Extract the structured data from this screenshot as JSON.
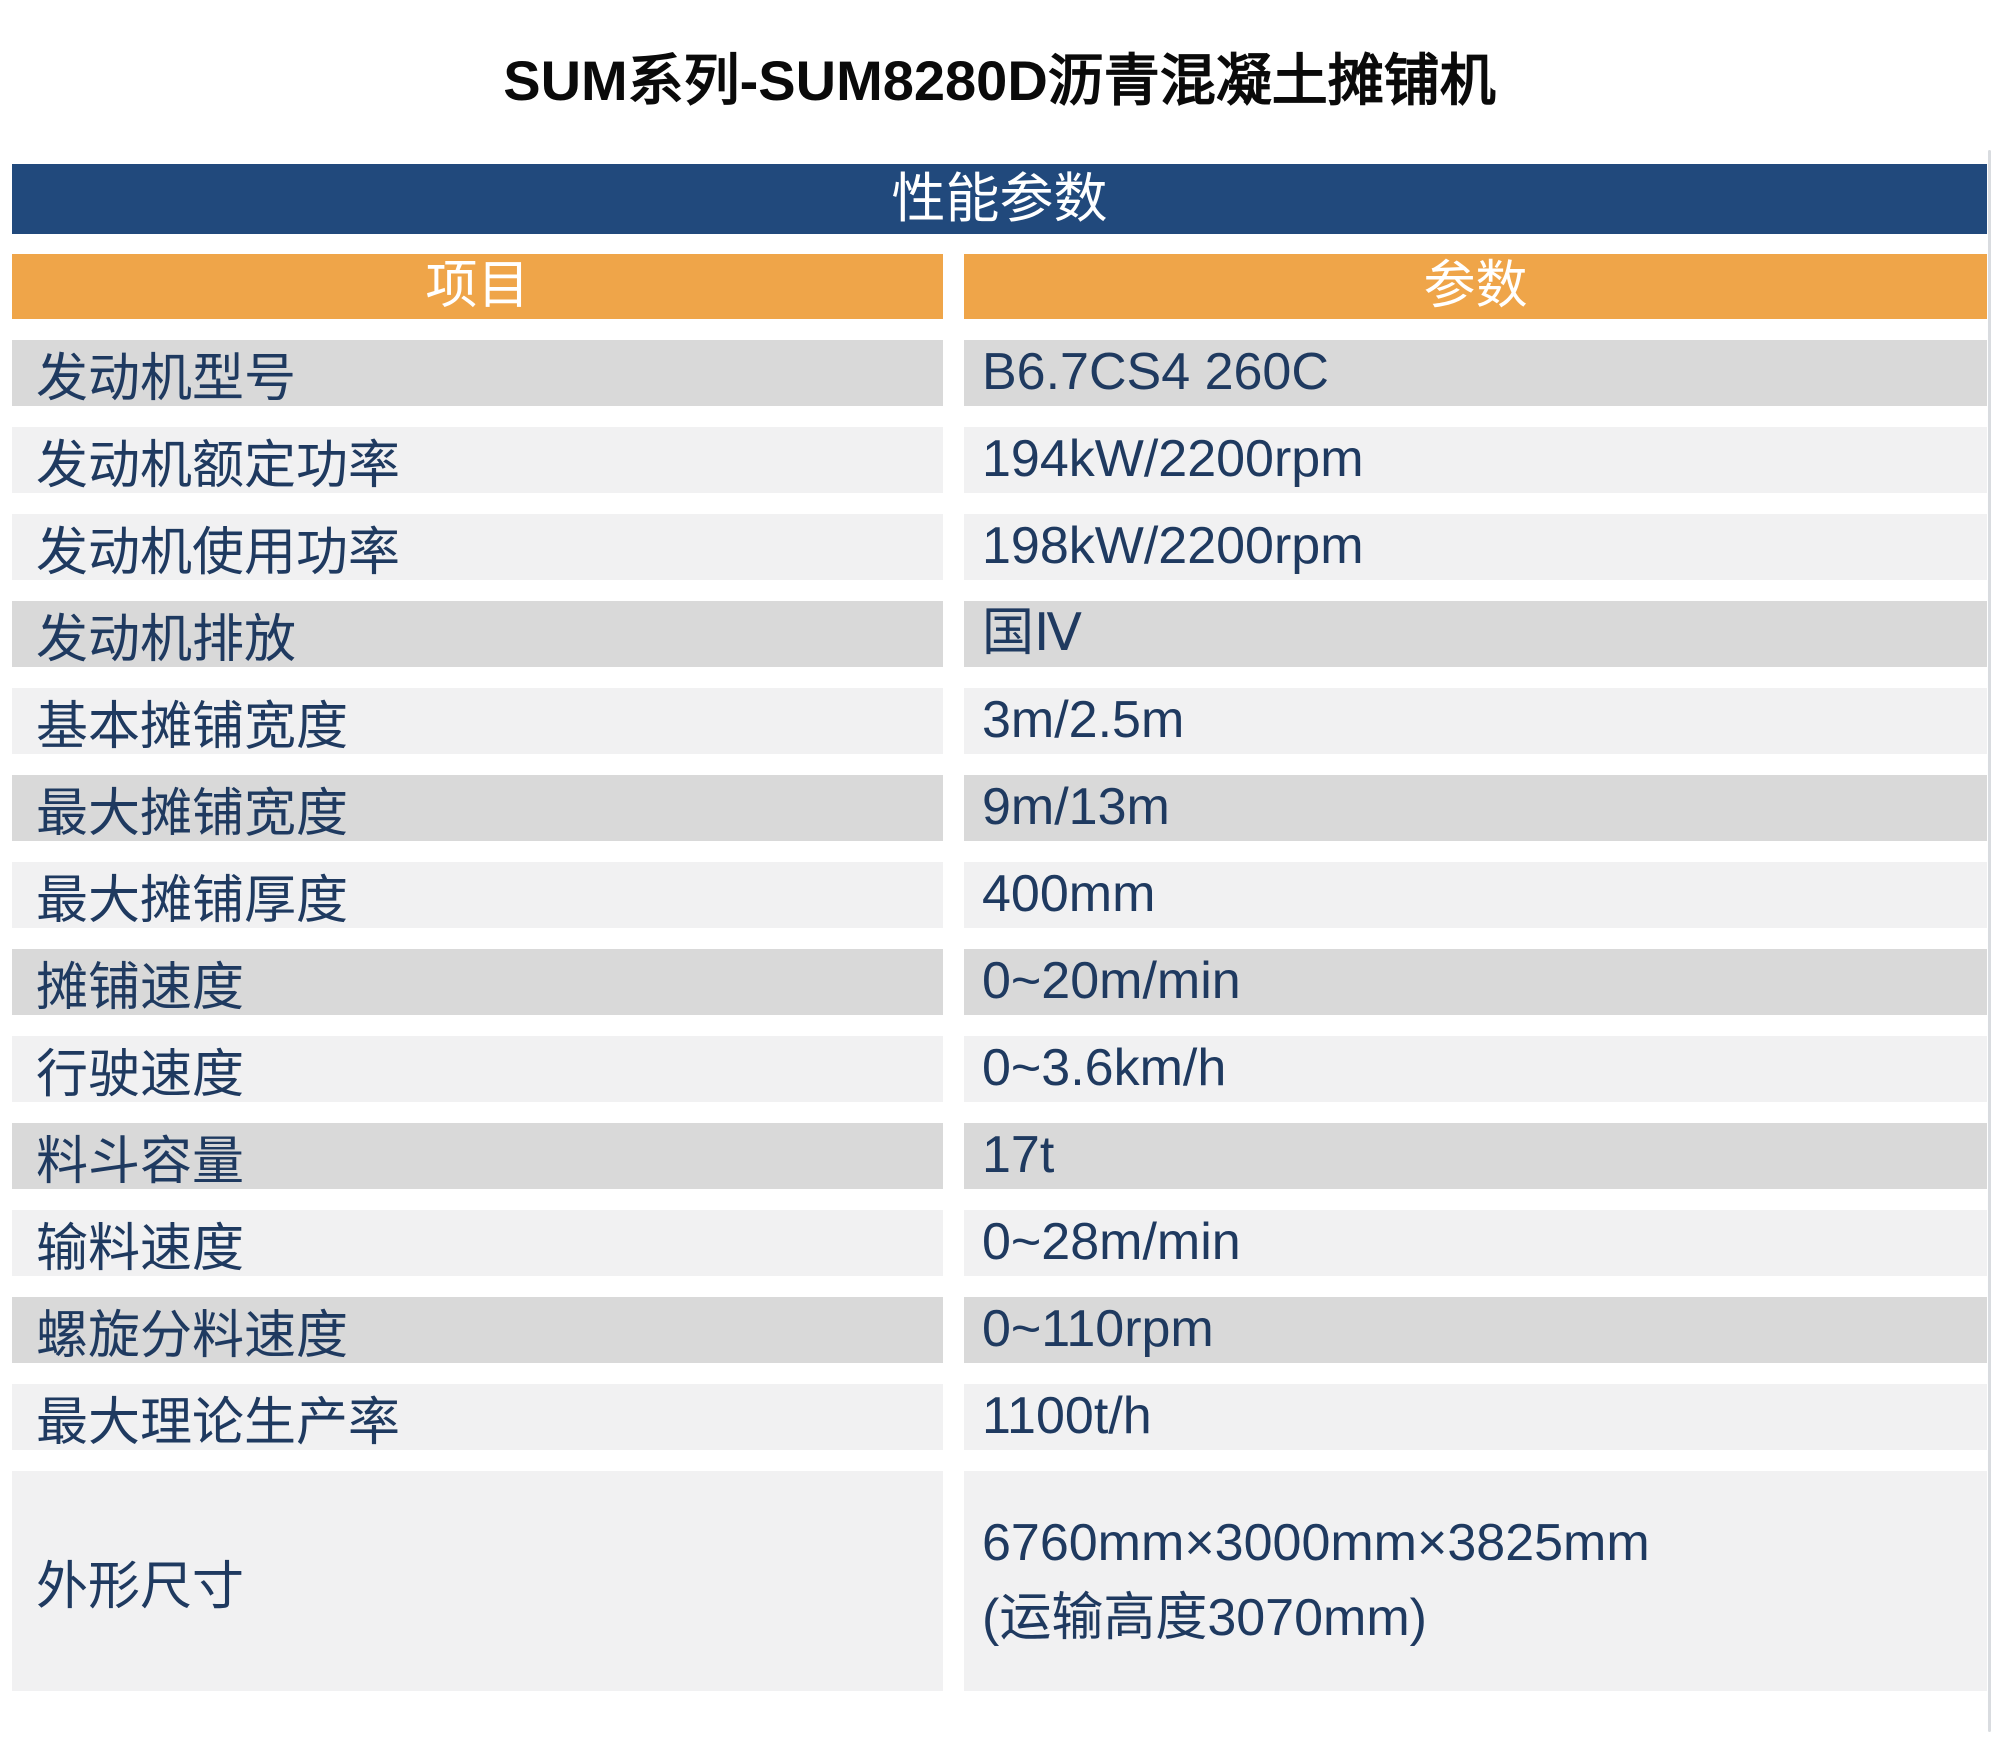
{
  "page": {
    "title": "SUM系列-SUM8280D沥青混凝土摊铺机",
    "section_header": "性能参数"
  },
  "colors": {
    "header_blue": "#21497C",
    "header_orange": "#EFA549",
    "row_dark_gray": "#D9D9D9",
    "row_light_gray": "#F1F1F2",
    "text_navy": "#1F3A60"
  },
  "table": {
    "columns": [
      {
        "label": "项目"
      },
      {
        "label": "参数"
      }
    ],
    "rows": [
      {
        "label": "发动机型号",
        "value": "B6.7CS4 260C",
        "shade": "dark"
      },
      {
        "label": "发动机额定功率",
        "value": "194kW/2200rpm",
        "shade": "light"
      },
      {
        "label": "发动机使用功率",
        "value": "198kW/2200rpm",
        "shade": "light"
      },
      {
        "label": "发动机排放",
        "value": "国Ⅳ",
        "shade": "dark"
      },
      {
        "label": "基本摊铺宽度",
        "value": "3m/2.5m",
        "shade": "light"
      },
      {
        "label": "最大摊铺宽度",
        "value": "9m/13m",
        "shade": "dark"
      },
      {
        "label": "最大摊铺厚度",
        "value": "400mm",
        "shade": "light"
      },
      {
        "label": "摊铺速度",
        "value": "0~20m/min",
        "shade": "dark"
      },
      {
        "label": "行驶速度",
        "value": "0~3.6km/h",
        "shade": "light"
      },
      {
        "label": "料斗容量",
        "value": "17t",
        "shade": "dark"
      },
      {
        "label": "输料速度",
        "value": "0~28m/min",
        "shade": "light"
      },
      {
        "label": "螺旋分料速度",
        "value": "0~110rpm",
        "shade": "dark"
      },
      {
        "label": "最大理论生产率",
        "value": "1100t/h",
        "shade": "light"
      },
      {
        "label": "外形尺寸",
        "value": "6760mm×3000mm×3825mm",
        "value_line2": "(运输高度3070mm)",
        "shade": "light",
        "tall": true
      }
    ]
  }
}
